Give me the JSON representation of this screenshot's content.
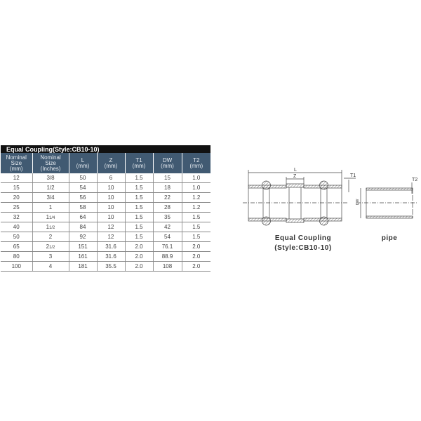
{
  "table": {
    "title": "Equal Coupling(Style:CB10-10)",
    "headers": [
      [
        "Nominal",
        "Size",
        "(mm)"
      ],
      [
        "Nominal",
        "Size",
        "(Inches)"
      ],
      [
        "L",
        "(mm)"
      ],
      [
        "Z",
        "(mm)"
      ],
      [
        "T1",
        "(mm)"
      ],
      [
        "DW",
        "(mm)"
      ],
      [
        "T2",
        "(mm)"
      ]
    ],
    "rows": [
      [
        "12",
        "3/8",
        "50",
        "6",
        "1.5",
        "15",
        "1.0"
      ],
      [
        "15",
        "1/2",
        "54",
        "10",
        "1.5",
        "18",
        "1.0"
      ],
      [
        "20",
        "3/4",
        "56",
        "10",
        "1.5",
        "22",
        "1.2"
      ],
      [
        "25",
        "1",
        "58",
        "10",
        "1.5",
        "28",
        "1.2"
      ],
      [
        "32",
        "1 1/4",
        "64",
        "10",
        "1.5",
        "35",
        "1.5"
      ],
      [
        "40",
        "1 1/2",
        "84",
        "12",
        "1.5",
        "42",
        "1.5"
      ],
      [
        "50",
        "2",
        "92",
        "12",
        "1.5",
        "54",
        "1.5"
      ],
      [
        "65",
        "2 1/2",
        "151",
        "31.6",
        "2.0",
        "76.1",
        "2.0"
      ],
      [
        "80",
        "3",
        "161",
        "31.6",
        "2.0",
        "88.9",
        "2.0"
      ],
      [
        "100",
        "4",
        "181",
        "35.5",
        "2.0",
        "108",
        "2.0"
      ]
    ]
  },
  "drawing": {
    "labels": {
      "L": "L",
      "Z": "Z",
      "T1": "T1",
      "T2": "T2",
      "DW": "DW"
    },
    "coupling_caption_line1": "Equal Coupling",
    "coupling_caption_line2": "(Style:CB10-10)",
    "pipe_caption": "pipe"
  },
  "colors": {
    "header_bg": "#415a72",
    "title_bg": "#111111"
  }
}
